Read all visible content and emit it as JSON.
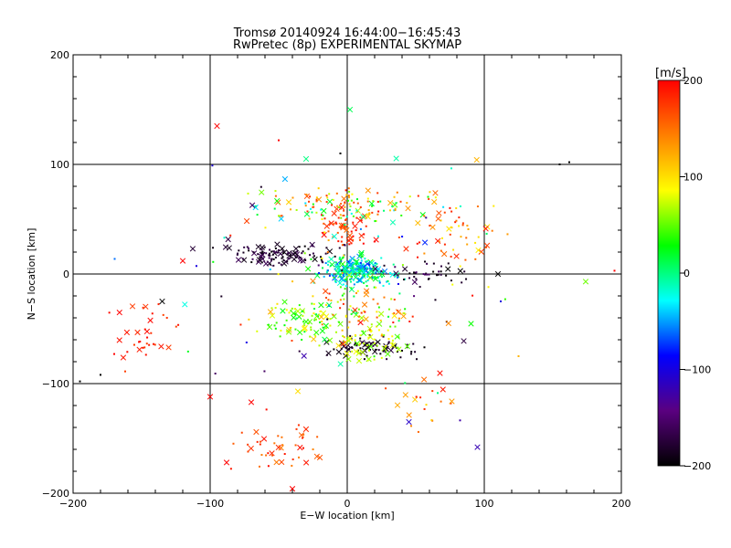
{
  "chart_data": {
    "type": "scatter",
    "title": "Tromsø 20140924 16:44:00−16:45:43",
    "subtitle": "RwPretec (8p) EXPERIMENTAL SKYMAP",
    "xlabel": "E−W location [km]",
    "ylabel": "N−S location [km]",
    "xlim": [
      -200,
      200
    ],
    "ylim": [
      -200,
      200
    ],
    "xticks": [
      "−200",
      "−100",
      "0",
      "100",
      "200"
    ],
    "yticks": [
      "−200",
      "−100",
      "0",
      "100",
      "200"
    ],
    "grid": true,
    "colorbar": {
      "label": "[m/s]",
      "range": [
        -200,
        200
      ],
      "ticks": [
        "−200",
        "−100",
        "0",
        "100",
        "200"
      ],
      "colormap": [
        "#000000",
        "#5a0080",
        "#0000ff",
        "#00ffff",
        "#00ff00",
        "#ffff00",
        "#ff8000",
        "#ff0000"
      ]
    },
    "clusters": [
      {
        "cx": 5,
        "cy": 5,
        "sx": 18,
        "sy": 10,
        "n": 180,
        "vmin": -80,
        "vmax": 40
      },
      {
        "cx": 10,
        "cy": 0,
        "sx": 25,
        "sy": 8,
        "n": 60,
        "vmin": -60,
        "vmax": 20
      },
      {
        "cx": -50,
        "cy": 18,
        "sx": 30,
        "sy": 8,
        "n": 110,
        "vmin": -200,
        "vmax": -160
      },
      {
        "cx": 20,
        "cy": -68,
        "sx": 30,
        "sy": 8,
        "n": 70,
        "vmin": -200,
        "vmax": -170
      },
      {
        "cx": 60,
        "cy": 0,
        "sx": 25,
        "sy": 8,
        "n": 40,
        "vmin": -200,
        "vmax": -150
      },
      {
        "cx": 0,
        "cy": 45,
        "sx": 15,
        "sy": 20,
        "n": 70,
        "vmin": 150,
        "vmax": 200
      },
      {
        "cx": -30,
        "cy": -45,
        "sx": 30,
        "sy": 18,
        "n": 90,
        "vmin": 10,
        "vmax": 120
      },
      {
        "cx": 20,
        "cy": -60,
        "sx": 20,
        "sy": 15,
        "n": 60,
        "vmin": 40,
        "vmax": 100
      },
      {
        "cx": 10,
        "cy": -30,
        "sx": 35,
        "sy": 20,
        "n": 80,
        "vmin": 0,
        "vmax": 200
      },
      {
        "cx": 0,
        "cy": 62,
        "sx": 55,
        "sy": 12,
        "n": 120,
        "vmin": -40,
        "vmax": 200
      },
      {
        "cx": 80,
        "cy": 40,
        "sx": 25,
        "sy": 25,
        "n": 50,
        "vmin": 90,
        "vmax": 200
      },
      {
        "cx": -150,
        "cy": -55,
        "sx": 25,
        "sy": 20,
        "n": 35,
        "vmin": 170,
        "vmax": 200
      },
      {
        "cx": -50,
        "cy": -160,
        "sx": 30,
        "sy": 25,
        "n": 45,
        "vmin": 140,
        "vmax": 200
      },
      {
        "cx": 55,
        "cy": -120,
        "sx": 30,
        "sy": 25,
        "n": 20,
        "vmin": 100,
        "vmax": 200
      },
      {
        "cx": 0,
        "cy": 0,
        "sx": 110,
        "sy": 90,
        "n": 90,
        "vmin": -200,
        "vmax": 200
      }
    ],
    "extra_points": [
      {
        "x": -95,
        "y": 135,
        "v": 200,
        "m": "x"
      },
      {
        "x": 2,
        "y": 150,
        "v": 10,
        "m": "x"
      },
      {
        "x": 95,
        "y": -158,
        "v": -120,
        "m": "x"
      },
      {
        "x": 45,
        "y": -135,
        "v": -110,
        "m": "x"
      },
      {
        "x": 155,
        "y": 100,
        "v": -200,
        "m": "+"
      },
      {
        "x": 162,
        "y": 102,
        "v": -200,
        "m": "+"
      },
      {
        "x": 195,
        "y": 3,
        "v": 200,
        "m": "+"
      },
      {
        "x": -195,
        "y": -98,
        "v": -200,
        "m": "+"
      },
      {
        "x": -180,
        "y": -92,
        "v": -200,
        "m": "+"
      },
      {
        "x": 125,
        "y": -75,
        "v": 120,
        "m": "+"
      },
      {
        "x": -100,
        "y": -112,
        "v": 200,
        "m": "x"
      },
      {
        "x": -70,
        "y": -117,
        "v": 200,
        "m": "x"
      },
      {
        "x": -36,
        "y": -107,
        "v": 100,
        "m": "x"
      },
      {
        "x": -40,
        "y": -196,
        "v": 200,
        "m": "x"
      },
      {
        "x": -88,
        "y": -172,
        "v": 200,
        "m": "x"
      },
      {
        "x": -135,
        "y": -25,
        "v": -200,
        "m": "x"
      },
      {
        "x": -120,
        "y": 12,
        "v": 200,
        "m": "x"
      },
      {
        "x": 110,
        "y": 0,
        "v": -200,
        "m": "x"
      },
      {
        "x": 112,
        "y": -25,
        "v": -100,
        "m": "+"
      },
      {
        "x": -30,
        "y": 105,
        "v": 0,
        "m": "x"
      },
      {
        "x": -5,
        "y": 110,
        "v": -200,
        "m": "+"
      },
      {
        "x": -50,
        "y": 122,
        "v": 200,
        "m": "+"
      },
      {
        "x": -170,
        "y": -73,
        "v": 200,
        "m": "+"
      }
    ]
  }
}
